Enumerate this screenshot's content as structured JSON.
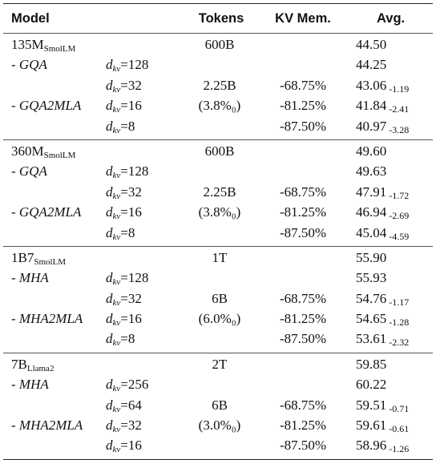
{
  "headers": {
    "model": "Model",
    "tokens": "Tokens",
    "kv_mem": "KV Mem.",
    "avg": "Avg."
  },
  "dkv_symbol": "d",
  "dkv_sub": "kv",
  "groups": [
    {
      "model": "135M",
      "model_sub": "SmolLM",
      "tokens": "600B",
      "avg": "44.50",
      "rows": [
        {
          "method": "- GQA",
          "dkv": "=128",
          "tokens": "",
          "kv": "",
          "avg": "44.25",
          "delta": ""
        },
        {
          "method": "",
          "dkv": "=32",
          "tokens": "2.25B",
          "kv": "-68.75%",
          "avg": "43.06",
          "delta": "-1.19"
        },
        {
          "method": "- GQA2MLA",
          "dkv": "=16",
          "tokens": "(3.8%₀)",
          "kv": "-81.25%",
          "avg": "41.84",
          "delta": "-2.41"
        },
        {
          "method": "",
          "dkv": "=8",
          "tokens": "",
          "kv": "-87.50%",
          "avg": "40.97",
          "delta": "-3.28"
        }
      ]
    },
    {
      "model": "360M",
      "model_sub": "SmolLM",
      "tokens": "600B",
      "avg": "49.60",
      "rows": [
        {
          "method": "- GQA",
          "dkv": "=128",
          "tokens": "",
          "kv": "",
          "avg": "49.63",
          "delta": ""
        },
        {
          "method": "",
          "dkv": "=32",
          "tokens": "2.25B",
          "kv": "-68.75%",
          "avg": "47.91",
          "delta": "-1.72"
        },
        {
          "method": "- GQA2MLA",
          "dkv": "=16",
          "tokens": "(3.8%₀)",
          "kv": "-81.25%",
          "avg": "46.94",
          "delta": "-2.69"
        },
        {
          "method": "",
          "dkv": "=8",
          "tokens": "",
          "kv": "-87.50%",
          "avg": "45.04",
          "delta": "-4.59"
        }
      ]
    },
    {
      "model": "1B7",
      "model_sub": "SmolLM",
      "tokens": "1T",
      "avg": "55.90",
      "rows": [
        {
          "method": "- MHA",
          "dkv": "=128",
          "tokens": "",
          "kv": "",
          "avg": "55.93",
          "delta": ""
        },
        {
          "method": "",
          "dkv": "=32",
          "tokens": "6B",
          "kv": "-68.75%",
          "avg": "54.76",
          "delta": "-1.17"
        },
        {
          "method": "- MHA2MLA",
          "dkv": "=16",
          "tokens": "(6.0%₀)",
          "kv": "-81.25%",
          "avg": "54.65",
          "delta": "-1.28"
        },
        {
          "method": "",
          "dkv": "=8",
          "tokens": "",
          "kv": "-87.50%",
          "avg": "53.61",
          "delta": "-2.32"
        }
      ]
    },
    {
      "model": "7B",
      "model_sub": "Llama2",
      "tokens": "2T",
      "avg": "59.85",
      "rows": [
        {
          "method": "- MHA",
          "dkv": "=256",
          "tokens": "",
          "kv": "",
          "avg": "60.22",
          "delta": ""
        },
        {
          "method": "",
          "dkv": "=64",
          "tokens": "6B",
          "kv": "-68.75%",
          "avg": "59.51",
          "delta": "-0.71"
        },
        {
          "method": "- MHA2MLA",
          "dkv": "=32",
          "tokens": "(3.0%₀)",
          "kv": "-81.25%",
          "avg": "59.61",
          "delta": "-0.61"
        },
        {
          "method": "",
          "dkv": "=16",
          "tokens": "",
          "kv": "-87.50%",
          "avg": "58.96",
          "delta": "-1.26"
        }
      ]
    }
  ]
}
